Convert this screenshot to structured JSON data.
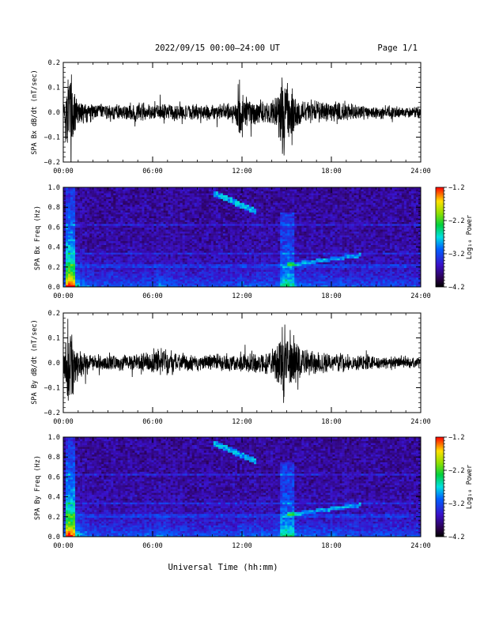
{
  "header": {
    "title": "2022/09/15  00:00–24:00 UT",
    "page": "Page 1/1"
  },
  "footer": {
    "xlabel": "Universal Time (hh:mm)"
  },
  "chart_data": [
    {
      "type": "line",
      "ylabel": "SPA Bx dB/dt (nT/sec)",
      "xticks": [
        "00:00",
        "06:00",
        "12:00",
        "18:00",
        "24:00"
      ],
      "xlim": [
        0,
        24
      ],
      "ylim": [
        -0.2,
        0.2
      ],
      "yticks": [
        -0.2,
        -0.1,
        0.0,
        0.1,
        0.2
      ],
      "yticklabels": [
        "−0.2",
        "−0.1",
        "0.0",
        "0.1",
        "0.2"
      ],
      "series_color": "#000000",
      "envelope": {
        "hours": [
          0,
          0.25,
          0.5,
          0.75,
          1.0,
          1.5,
          2,
          3,
          4,
          5,
          6,
          7,
          8,
          9,
          10,
          11,
          11.6,
          11.8,
          12,
          12.5,
          13,
          14,
          14.5,
          14.8,
          15,
          15.3,
          15.6,
          16,
          17,
          18,
          19,
          20,
          21,
          22,
          23,
          24
        ],
        "amplitude": [
          0.02,
          0.2,
          0.2,
          0.12,
          0.07,
          0.05,
          0.04,
          0.035,
          0.035,
          0.04,
          0.04,
          0.04,
          0.035,
          0.035,
          0.035,
          0.04,
          0.05,
          0.2,
          0.09,
          0.07,
          0.05,
          0.05,
          0.09,
          0.2,
          0.16,
          0.12,
          0.09,
          0.06,
          0.05,
          0.045,
          0.04,
          0.035,
          0.03,
          0.03,
          0.025,
          0.025
        ]
      }
    },
    {
      "type": "heatmap",
      "ylabel": "SPA Bx Freq (Hz)",
      "xticks": [
        "00:00",
        "06:00",
        "12:00",
        "18:00",
        "24:00"
      ],
      "xlim": [
        0,
        24
      ],
      "ylim": [
        0,
        1.0
      ],
      "yticks": [
        0.0,
        0.2,
        0.4,
        0.6,
        0.8,
        1.0
      ],
      "yticklabels": [
        "0.0",
        "0.2",
        "0.4",
        "0.6",
        "0.8",
        "1.0"
      ],
      "colorbar": {
        "label": "Log₁₀ Power",
        "range": [
          -4.2,
          -1.2
        ],
        "ticks": [
          "−1.2",
          "−2.2",
          "−3.2",
          "−4.2"
        ]
      }
    },
    {
      "type": "line",
      "ylabel": "SPA By dB/dt (nT/sec)",
      "xticks": [
        "00:00",
        "06:00",
        "12:00",
        "18:00",
        "24:00"
      ],
      "xlim": [
        0,
        24
      ],
      "ylim": [
        -0.2,
        0.2
      ],
      "yticks": [
        -0.2,
        -0.1,
        0.0,
        0.1,
        0.2
      ],
      "yticklabels": [
        "−0.2",
        "−0.1",
        "0.0",
        "0.1",
        "0.2"
      ],
      "series_color": "#000000",
      "envelope": {
        "hours": [
          0,
          0.25,
          0.5,
          0.75,
          1.0,
          1.5,
          2,
          3,
          4,
          5,
          6,
          6.5,
          7,
          8,
          9,
          10,
          11,
          12,
          13,
          14,
          14.5,
          14.8,
          15,
          15.3,
          15.6,
          16,
          17,
          18,
          19,
          20,
          21,
          22,
          23,
          24
        ],
        "amplitude": [
          0.02,
          0.2,
          0.2,
          0.12,
          0.08,
          0.05,
          0.04,
          0.035,
          0.035,
          0.04,
          0.05,
          0.07,
          0.06,
          0.04,
          0.035,
          0.035,
          0.04,
          0.05,
          0.05,
          0.06,
          0.1,
          0.2,
          0.18,
          0.13,
          0.09,
          0.06,
          0.05,
          0.045,
          0.04,
          0.035,
          0.03,
          0.03,
          0.025,
          0.025
        ]
      }
    },
    {
      "type": "heatmap",
      "ylabel": "SPA By Freq (Hz)",
      "xticks": [
        "00:00",
        "06:00",
        "12:00",
        "18:00",
        "24:00"
      ],
      "xlim": [
        0,
        24
      ],
      "ylim": [
        0,
        1.0
      ],
      "yticks": [
        0.0,
        0.2,
        0.4,
        0.6,
        0.8,
        1.0
      ],
      "yticklabels": [
        "0.0",
        "0.2",
        "0.4",
        "0.6",
        "0.8",
        "1.0"
      ],
      "colorbar": {
        "label": "Log₁₀ Power",
        "range": [
          -4.2,
          -1.2
        ],
        "ticks": [
          "−1.2",
          "−2.2",
          "−3.2",
          "−4.2"
        ]
      }
    }
  ]
}
